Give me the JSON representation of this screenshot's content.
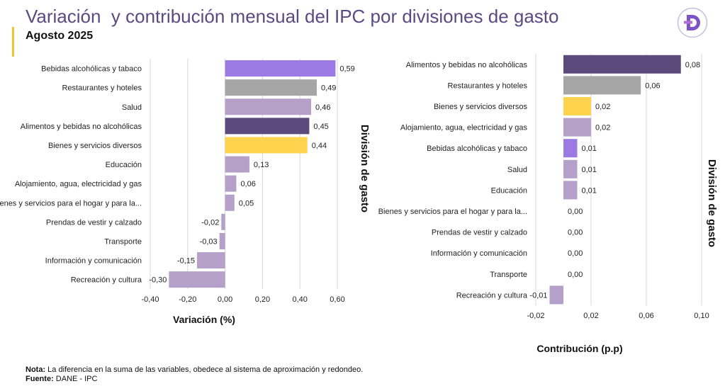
{
  "header": {
    "title": "Variación  y contribución mensual del IPC por divisiones de gasto",
    "subtitle": "Agosto 2025"
  },
  "logo": {
    "icon": "d-logo-icon",
    "letter": "D"
  },
  "colors": {
    "violet": "#9b7be3",
    "gray": "#a6a6a6",
    "lilac": "#b4a0c8",
    "dark_purple": "#5c4a7c",
    "yellow": "#ffd34e",
    "title": "#5a4a82",
    "accent": "#f4c430"
  },
  "chart_data": [
    {
      "type": "bar",
      "orientation": "horizontal",
      "categories": [
        "Bebidas alcohólicas y tabaco",
        "Restaurantes y hoteles",
        "Salud",
        "Alimentos y bebidas no alcohólicas",
        "Bienes y servicios diversos",
        "Educación",
        "Alojamiento, agua, electricidad y gas",
        "Bienes y servicios para el hogar y para la...",
        "Prendas de vestir y calzado",
        "Transporte",
        "Información y comunicación",
        "Recreación y cultura"
      ],
      "values": [
        0.59,
        0.49,
        0.46,
        0.45,
        0.44,
        0.13,
        0.06,
        0.05,
        -0.02,
        -0.03,
        -0.15,
        -0.3
      ],
      "value_labels": [
        "0,59",
        "0,49",
        "0,46",
        "0,45",
        "0,44",
        "0,13",
        "0,06",
        "0,05",
        "-0,02",
        "-0,03",
        "-0,15",
        "-0,30"
      ],
      "bar_colors": [
        "violet",
        "gray",
        "lilac",
        "dark_purple",
        "yellow",
        "lilac",
        "lilac",
        "lilac",
        "lilac",
        "lilac",
        "lilac",
        "lilac"
      ],
      "xlim": [
        -0.4,
        0.6
      ],
      "xticks": [
        -0.4,
        -0.2,
        0.0,
        0.2,
        0.4,
        0.6
      ],
      "xtick_labels": [
        "-0,40",
        "-0,20",
        "0,00",
        "0,20",
        "0,40",
        "0,60"
      ],
      "xlabel": "Variación (%)",
      "ylabel": "División de gasto",
      "grid": true
    },
    {
      "type": "bar",
      "orientation": "horizontal",
      "categories": [
        "Alimentos y bebidas no alcohólicas",
        "Restaurantes y hoteles",
        "Bienes y servicios diversos",
        "Alojamiento, agua, electricidad y gas",
        "Bebidas alcohólicas y tabaco",
        "Salud",
        "Educación",
        "Bienes y servicios para el hogar y para la...",
        "Prendas de vestir y calzado",
        "Información y comunicación",
        "Transporte",
        "Recreación y cultura"
      ],
      "values": [
        0.085,
        0.056,
        0.02,
        0.02,
        0.01,
        0.01,
        0.01,
        0.0,
        0.0,
        0.0,
        0.0,
        -0.01
      ],
      "value_labels": [
        "0,08",
        "0,06",
        "0,02",
        "0,02",
        "0,01",
        "0,01",
        "0,01",
        "0,00",
        "0,00",
        "0,00",
        "0,00",
        "-0,01"
      ],
      "bar_colors": [
        "dark_purple",
        "gray",
        "yellow",
        "lilac",
        "violet",
        "lilac",
        "lilac",
        "lilac",
        "lilac",
        "lilac",
        "lilac",
        "lilac"
      ],
      "xlim": [
        -0.02,
        0.1
      ],
      "xticks": [
        -0.02,
        0.02,
        0.06,
        0.1
      ],
      "xtick_labels": [
        "-0,02",
        "0,02",
        "0,06",
        "0,10"
      ],
      "xlabel": "Contribución (p.p)",
      "ylabel": "División de gasto",
      "grid": true
    }
  ],
  "notes": {
    "nota_label": "Nota:",
    "nota_text": " La diferencia en la suma de las variables, obedece al sistema de aproximación y redondeo.",
    "fuente_label": "Fuente:",
    "fuente_text": " DANE - IPC"
  }
}
